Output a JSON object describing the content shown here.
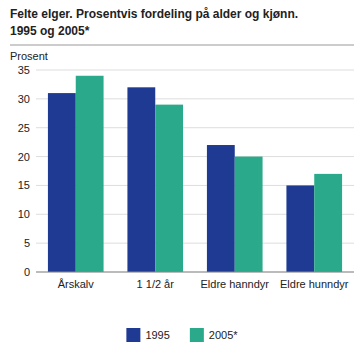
{
  "chart_data": {
    "type": "bar",
    "title": "Felte elger. Prosentvis fordeling på alder og kjønn.",
    "subtitle": "1995 og 2005*",
    "ylabel": "Prosent",
    "categories": [
      "Årskalv",
      "1 1/2 år",
      "Eldre hanndyr",
      "Eldre hunndyr"
    ],
    "series": [
      {
        "name": "1995",
        "color": "#1f3a93",
        "values": [
          31,
          32,
          22,
          15
        ]
      },
      {
        "name": "2005*",
        "color": "#2aaa8a",
        "values": [
          34,
          29,
          20,
          17
        ]
      }
    ],
    "ylim": [
      0,
      35
    ],
    "yticks": [
      0,
      5,
      10,
      15,
      20,
      25,
      30,
      35
    ],
    "grid": true,
    "legend": "bottom"
  }
}
